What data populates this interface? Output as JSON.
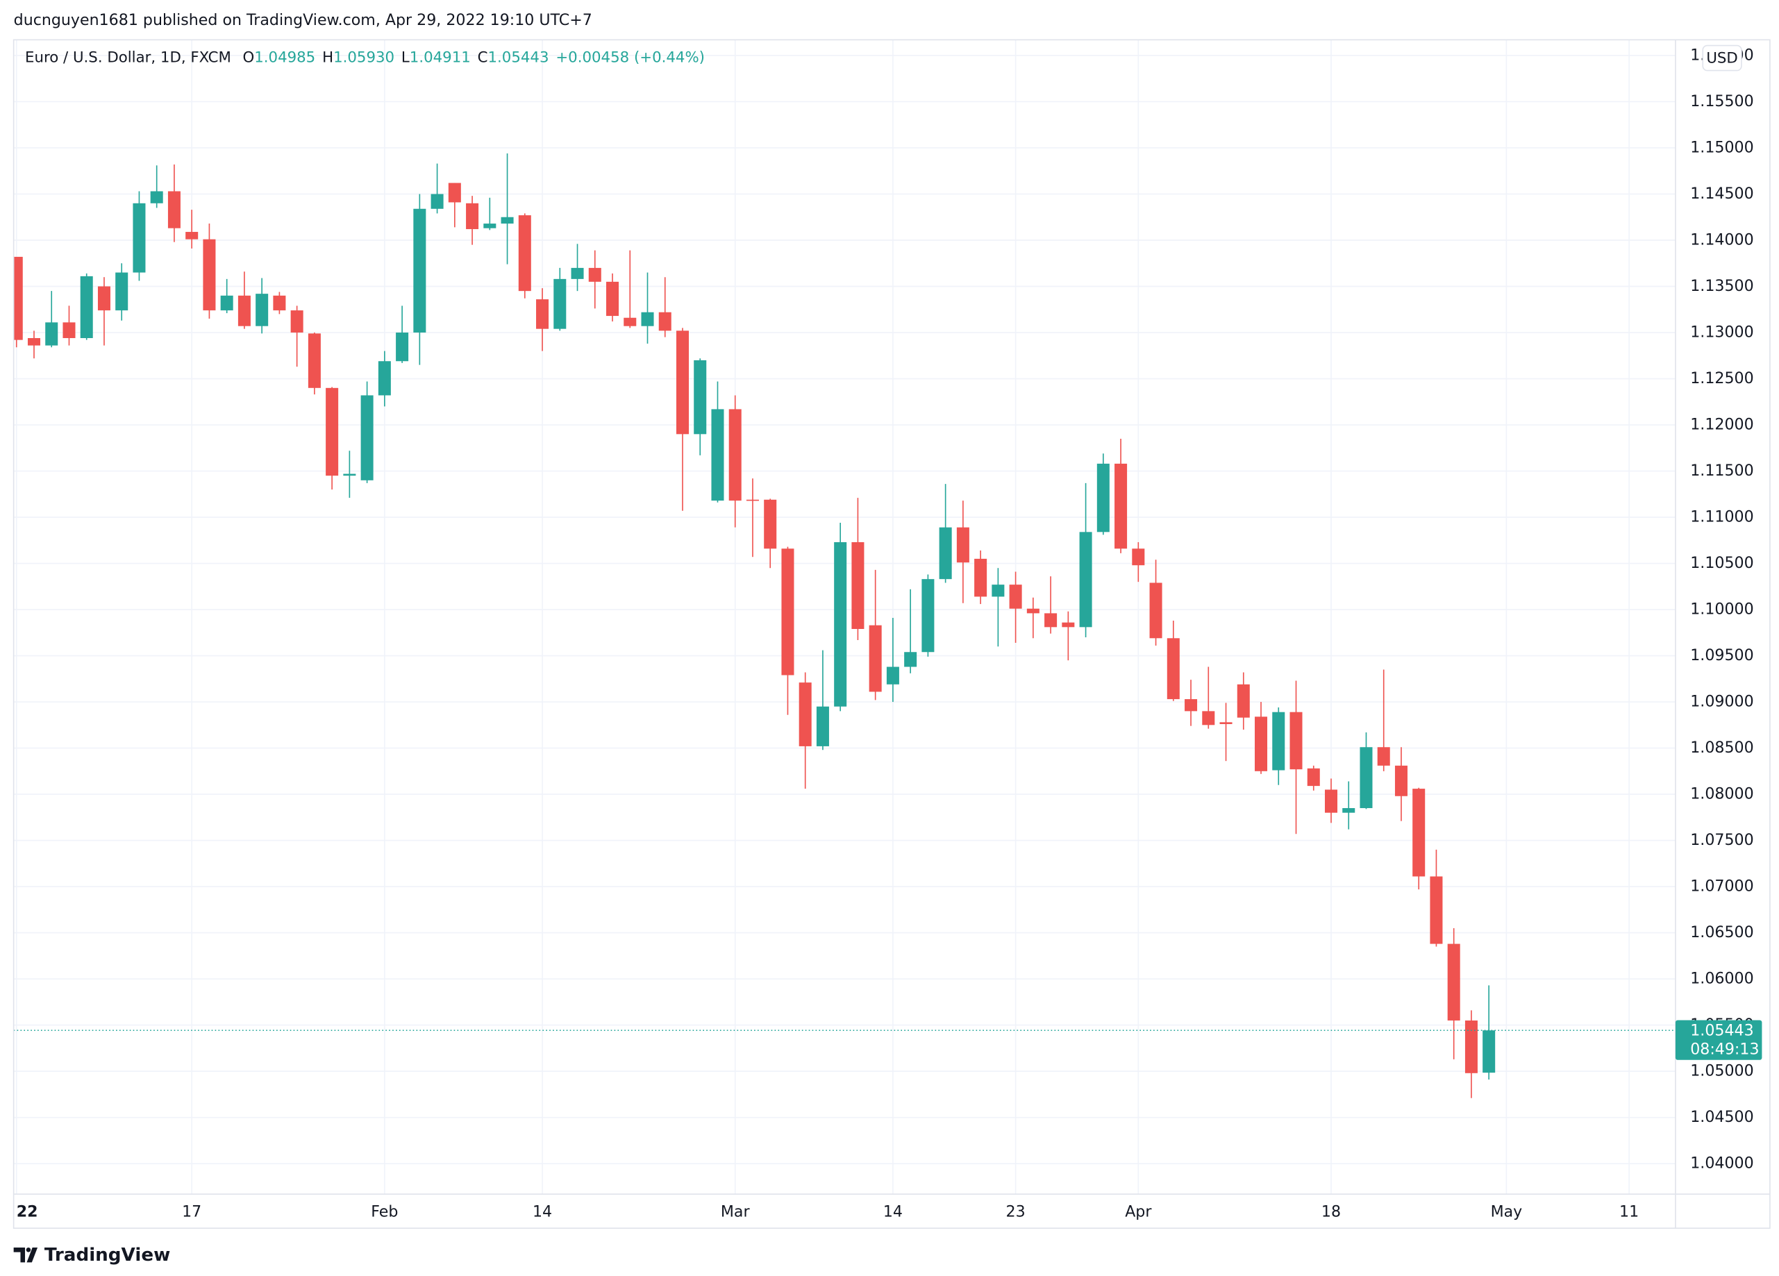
{
  "publisher": "ducnguyen1681 published on TradingView.com, Apr 29, 2022 19:10 UTC+7",
  "brand": "TradingView",
  "chart_data": {
    "type": "candlestick",
    "title": "Euro / U.S. Dollar, 1D, FXCM",
    "legend_ohlc": [
      {
        "label": "O",
        "value": "1.04985"
      },
      {
        "label": "H",
        "value": "1.05930"
      },
      {
        "label": "L",
        "value": "1.04911"
      },
      {
        "label": "C",
        "value": "1.05443"
      }
    ],
    "change": "+0.00458 (+0.44%)",
    "currency": "USD",
    "countdown": "08:49:13",
    "up_color": "#26a69a",
    "down_color": "#ef5350",
    "grid": true,
    "categories": [
      "22",
      null,
      null,
      null,
      null,
      null,
      null,
      null,
      null,
      null,
      "17",
      null,
      null,
      null,
      null,
      null,
      null,
      null,
      null,
      null,
      null,
      "Feb",
      null,
      null,
      null,
      null,
      null,
      null,
      null,
      null,
      "14",
      null,
      null,
      null,
      null,
      null,
      null,
      null,
      null,
      null,
      null,
      "Mar",
      null,
      null,
      null,
      null,
      null,
      null,
      null,
      null,
      "14",
      null,
      null,
      null,
      null,
      null,
      null,
      "23",
      null,
      null,
      null,
      null,
      null,
      null,
      "Apr",
      null,
      null,
      null,
      null,
      null,
      null,
      null,
      null,
      null,
      null,
      "18",
      null,
      null,
      null,
      null,
      null,
      null,
      null,
      null,
      null,
      "May",
      null,
      null,
      null,
      null,
      null,
      null,
      "11",
      null,
      null
    ],
    "open": [
      1.1382,
      1.1294,
      1.1286,
      1.1311,
      1.1294,
      1.135,
      1.1324,
      1.1365,
      1.144,
      1.1453,
      1.1409,
      1.1401,
      1.1324,
      1.134,
      1.1307,
      1.134,
      1.1324,
      1.1299,
      1.124,
      1.1145,
      1.114,
      1.1232,
      1.1269,
      1.13,
      1.1434,
      1.1462,
      1.144,
      1.1413,
      1.1418,
      1.1427,
      1.1336,
      1.1304,
      1.1358,
      1.137,
      1.1355,
      1.1316,
      1.1307,
      1.1322,
      1.1302,
      1.119,
      1.1118,
      1.1217,
      1.1119,
      1.1119,
      1.1066,
      1.0921,
      1.0852,
      1.0895,
      1.1073,
      1.0983,
      1.0919,
      1.0938,
      1.0954,
      1.1033,
      1.1089,
      1.1055,
      1.1014,
      1.1027,
      1.1001,
      1.0996,
      1.0986,
      1.0981,
      1.1084,
      1.1158,
      1.1066,
      1.1029,
      1.0969,
      1.0903,
      1.089,
      1.0878,
      1.0919,
      1.0884,
      1.0826,
      1.0889,
      1.0828,
      1.0805,
      1.078,
      1.0785,
      1.0851,
      1.0831,
      1.0806,
      1.0711,
      1.0638,
      1.0555,
      1.04985,
      null,
      null,
      null,
      null,
      null,
      null,
      null,
      null,
      null,
      null
    ],
    "high": [
      1.1382,
      1.1302,
      1.1345,
      1.1329,
      1.1364,
      1.136,
      1.1375,
      1.1453,
      1.1481,
      1.1482,
      1.1433,
      1.1418,
      1.1358,
      1.1366,
      1.1359,
      1.1344,
      1.1329,
      1.13,
      1.1241,
      1.1172,
      1.1247,
      1.128,
      1.1329,
      1.145,
      1.1483,
      1.1462,
      1.1448,
      1.1446,
      1.1494,
      1.1429,
      1.1348,
      1.137,
      1.1396,
      1.1389,
      1.1364,
      1.1389,
      1.1365,
      1.136,
      1.1305,
      1.1272,
      1.1247,
      1.1232,
      1.1142,
      1.112,
      1.1068,
      1.0932,
      1.0956,
      1.1094,
      1.1121,
      1.1043,
      1.0991,
      1.1022,
      1.1038,
      1.1136,
      1.1118,
      1.1064,
      1.1045,
      1.1041,
      1.1013,
      1.1036,
      1.0998,
      1.1137,
      1.1169,
      1.1185,
      1.1073,
      1.1054,
      1.0988,
      1.0924,
      1.0938,
      1.0899,
      1.0932,
      1.09,
      1.0894,
      1.0923,
      1.0831,
      1.0817,
      1.0814,
      1.0867,
      1.0935,
      1.0851,
      1.0807,
      1.074,
      1.0655,
      1.0566,
      1.0593,
      null,
      null,
      null,
      null,
      null,
      null,
      null,
      null,
      null,
      null
    ],
    "low": [
      1.1284,
      1.1272,
      1.1284,
      1.1286,
      1.1292,
      1.1286,
      1.1313,
      1.1356,
      1.1435,
      1.1398,
      1.1391,
      1.1315,
      1.1321,
      1.1304,
      1.1299,
      1.132,
      1.1263,
      1.1233,
      1.113,
      1.1121,
      1.1137,
      1.122,
      1.1267,
      1.1265,
      1.1429,
      1.1414,
      1.1395,
      1.1411,
      1.1374,
      1.1337,
      1.128,
      1.1302,
      1.1345,
      1.1326,
      1.1312,
      1.1305,
      1.1288,
      1.1295,
      1.1107,
      1.1167,
      1.1116,
      1.1089,
      1.1057,
      1.1045,
      1.0886,
      1.0806,
      1.0848,
      1.089,
      1.0967,
      1.0902,
      1.09,
      1.0931,
      1.0949,
      1.1029,
      1.1007,
      1.1006,
      1.096,
      1.0964,
      1.0969,
      1.0974,
      1.0945,
      1.097,
      1.1081,
      1.1061,
      1.103,
      1.0961,
      1.0901,
      1.0874,
      1.0871,
      1.0836,
      1.087,
      1.0822,
      1.081,
      1.0757,
      1.0804,
      1.0769,
      1.0762,
      1.0784,
      1.0825,
      1.0771,
      1.0697,
      1.0635,
      1.0513,
      1.0471,
      1.04911,
      null,
      null,
      null,
      null,
      null,
      null,
      null,
      null,
      null,
      null
    ],
    "close": [
      1.1292,
      1.1286,
      1.1311,
      1.1294,
      1.1361,
      1.1324,
      1.1365,
      1.144,
      1.1453,
      1.1413,
      1.1401,
      1.1324,
      1.134,
      1.1307,
      1.1342,
      1.1324,
      1.13,
      1.124,
      1.1145,
      1.1147,
      1.1232,
      1.1269,
      1.13,
      1.1434,
      1.145,
      1.1441,
      1.1412,
      1.1418,
      1.1425,
      1.1345,
      1.1304,
      1.1358,
      1.137,
      1.1355,
      1.1318,
      1.1307,
      1.1322,
      1.1302,
      1.119,
      1.127,
      1.1217,
      1.1118,
      1.1118,
      1.1066,
      1.0929,
      1.0852,
      1.0895,
      1.1073,
      1.0979,
      1.0911,
      1.0938,
      1.0954,
      1.1033,
      1.1089,
      1.1051,
      1.1014,
      1.1027,
      1.1001,
      1.0996,
      1.0981,
      1.0981,
      1.1084,
      1.1158,
      1.1066,
      1.1048,
      1.0969,
      1.0903,
      1.089,
      1.0875,
      1.0876,
      1.0883,
      1.0825,
      1.0889,
      1.0827,
      1.0809,
      1.078,
      1.0785,
      1.0851,
      1.0831,
      1.0798,
      1.0711,
      1.0638,
      1.0555,
      1.0498,
      1.05443,
      null,
      null,
      null,
      null,
      null,
      null,
      null,
      null,
      null,
      null
    ],
    "ylim": [
      1.0367,
      1.1617
    ],
    "yticks": [
      {
        "value": 1.04,
        "label": "1.04000"
      },
      {
        "value": 1.045,
        "label": "1.04500"
      },
      {
        "value": 1.05,
        "label": "1.05000"
      },
      {
        "value": 1.055,
        "label": "1.05500"
      },
      {
        "value": 1.06,
        "label": "1.06000"
      },
      {
        "value": 1.065,
        "label": "1.06500"
      },
      {
        "value": 1.07,
        "label": "1.07000"
      },
      {
        "value": 1.075,
        "label": "1.07500"
      },
      {
        "value": 1.08,
        "label": "1.08000"
      },
      {
        "value": 1.085,
        "label": "1.08500"
      },
      {
        "value": 1.09,
        "label": "1.09000"
      },
      {
        "value": 1.095,
        "label": "1.09500"
      },
      {
        "value": 1.1,
        "label": "1.10000"
      },
      {
        "value": 1.105,
        "label": "1.10500"
      },
      {
        "value": 1.11,
        "label": "1.11000"
      },
      {
        "value": 1.115,
        "label": "1.11500"
      },
      {
        "value": 1.12,
        "label": "1.12000"
      },
      {
        "value": 1.125,
        "label": "1.12500"
      },
      {
        "value": 1.13,
        "label": "1.13000"
      },
      {
        "value": 1.135,
        "label": "1.13500"
      },
      {
        "value": 1.14,
        "label": "1.14000"
      },
      {
        "value": 1.145,
        "label": "1.14500"
      },
      {
        "value": 1.15,
        "label": "1.15000"
      },
      {
        "value": 1.155,
        "label": "1.15500"
      },
      {
        "value": 1.16,
        "label": "1.16000"
      }
    ]
  }
}
